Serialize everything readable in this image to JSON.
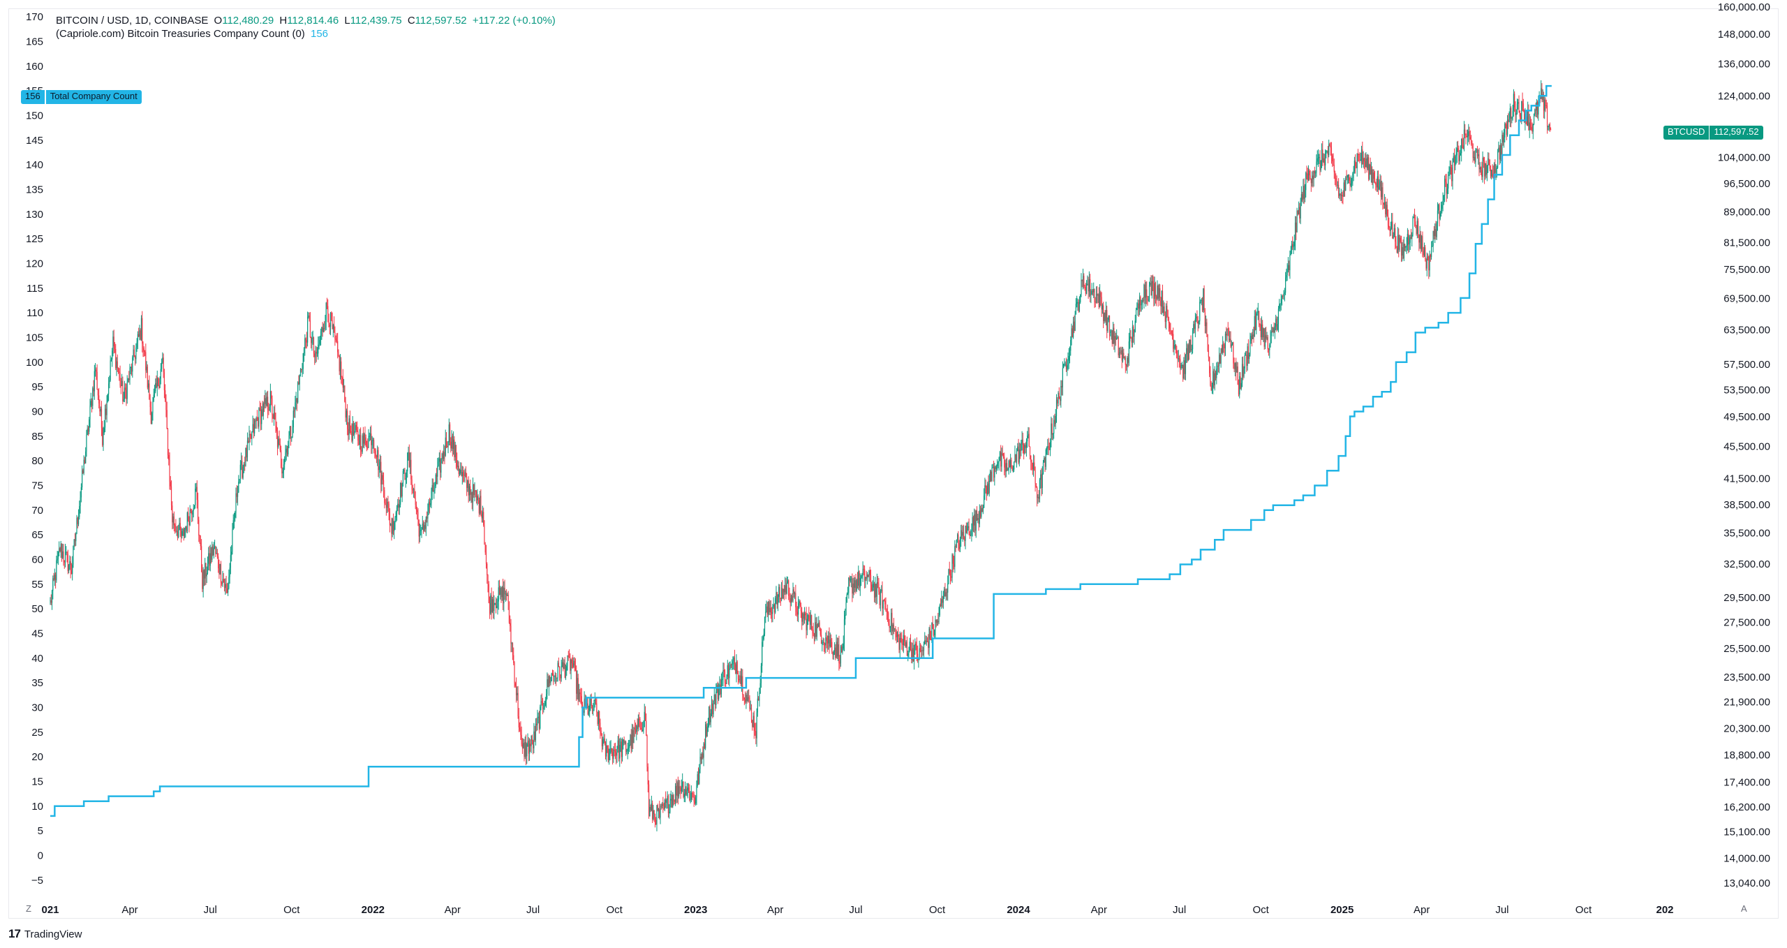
{
  "header": {
    "symbol": "BITCOIN / USD, 1D, COINBASE",
    "open_label": "O",
    "open": "112,480.29",
    "high_label": "H",
    "high": "112,814.46",
    "low_label": "L",
    "low": "112,439.75",
    "close_label": "C",
    "close": "112,597.52",
    "change": "+117.22 (+0.10%)",
    "indicator": "(Capriole.com) Bitcoin Treasuries Company Count (0)",
    "indicator_value": "156"
  },
  "badges": {
    "left_value": "156",
    "left_label": "Total Company Count",
    "right_symbol": "BTCUSD",
    "right_price": "112,597.52"
  },
  "footer": {
    "brand": "TradingView",
    "zoom_button": "Z",
    "auto_button": "A"
  },
  "colors": {
    "up": "#089981",
    "down": "#f23645",
    "count_line": "#22b5e6",
    "axis_text": "#131722"
  },
  "chart_data": {
    "type": "candlestick + step line",
    "symbol": "BTCUSD",
    "interval": "1D",
    "x_range": [
      "2021-01-01",
      "2026-01-01"
    ],
    "x_tick_labels": [
      "021",
      "Apr",
      "Jul",
      "Oct",
      "2022",
      "Apr",
      "Jul",
      "Oct",
      "2023",
      "Apr",
      "Jul",
      "Oct",
      "2024",
      "Apr",
      "Jul",
      "Oct",
      "2025",
      "Apr",
      "Jul",
      "Oct",
      "202"
    ],
    "x_tick_dates": [
      "2021-01-01",
      "2021-04-01",
      "2021-07-01",
      "2021-10-01",
      "2022-01-01",
      "2022-04-01",
      "2022-07-01",
      "2022-10-01",
      "2023-01-01",
      "2023-04-01",
      "2023-07-01",
      "2023-10-01",
      "2024-01-01",
      "2024-04-01",
      "2024-07-01",
      "2024-10-01",
      "2025-01-01",
      "2025-04-01",
      "2025-07-01",
      "2025-10-01",
      "2026-01-01"
    ],
    "left_axis": {
      "label": "Total Company Count",
      "range": [
        -8,
        172
      ],
      "ticks": [
        -5,
        0,
        5,
        10,
        15,
        20,
        25,
        30,
        35,
        40,
        45,
        50,
        55,
        60,
        65,
        70,
        75,
        80,
        85,
        90,
        95,
        100,
        105,
        110,
        115,
        120,
        125,
        130,
        135,
        140,
        145,
        150,
        155,
        160,
        165,
        170
      ]
    },
    "right_axis": {
      "scale": "log",
      "range": [
        12600,
        160000
      ],
      "ticks": [
        13040,
        14000,
        15100,
        16200,
        17400,
        18800,
        20300,
        21900,
        23500,
        25500,
        27500,
        29500,
        32500,
        35500,
        38500,
        41500,
        45500,
        49500,
        53500,
        57500,
        63500,
        69500,
        75500,
        81500,
        89000,
        96500,
        104000,
        112000,
        124000,
        136000,
        148000,
        160000
      ],
      "tick_labels": [
        "13,040.00",
        "14,000.00",
        "15,100.00",
        "16,200.00",
        "17,400.00",
        "18,800.00",
        "20,300.00",
        "21,900.00",
        "23,500.00",
        "25,500.00",
        "27,500.00",
        "29,500.00",
        "32,500.00",
        "35,500.00",
        "38,500.00",
        "41,500.00",
        "45,500.00",
        "49,500.00",
        "53,500.00",
        "57,500.00",
        "63,500.00",
        "69,500.00",
        "75,500.00",
        "81,500.00",
        "89,000.00",
        "96,500.00",
        "104,000.00",
        "",
        "124,000.00",
        "136,000.00",
        "148,000.00",
        "160,000.00"
      ]
    },
    "price_series": {
      "name": "BITCOIN / USD",
      "approx_close_path": [
        [
          "2021-01-01",
          29000
        ],
        [
          "2021-01-12",
          34000
        ],
        [
          "2021-01-25",
          32000
        ],
        [
          "2021-02-10",
          45000
        ],
        [
          "2021-02-21",
          57000
        ],
        [
          "2021-03-01",
          47000
        ],
        [
          "2021-03-13",
          61000
        ],
        [
          "2021-03-25",
          52000
        ],
        [
          "2021-04-14",
          64000
        ],
        [
          "2021-04-25",
          50000
        ],
        [
          "2021-05-08",
          58000
        ],
        [
          "2021-05-19",
          37000
        ],
        [
          "2021-05-30",
          35000
        ],
        [
          "2021-06-15",
          40000
        ],
        [
          "2021-06-22",
          31000
        ],
        [
          "2021-07-05",
          34000
        ],
        [
          "2021-07-20",
          29800
        ],
        [
          "2021-08-01",
          41000
        ],
        [
          "2021-08-22",
          49000
        ],
        [
          "2021-09-07",
          52000
        ],
        [
          "2021-09-20",
          43000
        ],
        [
          "2021-10-01",
          48000
        ],
        [
          "2021-10-20",
          65000
        ],
        [
          "2021-10-28",
          58000
        ],
        [
          "2021-11-10",
          68000
        ],
        [
          "2021-11-25",
          57000
        ],
        [
          "2021-12-04",
          48000
        ],
        [
          "2021-12-20",
          46000
        ],
        [
          "2022-01-01",
          47000
        ],
        [
          "2022-01-22",
          36000
        ],
        [
          "2022-02-10",
          44000
        ],
        [
          "2022-02-24",
          35000
        ],
        [
          "2022-03-28",
          47500
        ],
        [
          "2022-04-10",
          42000
        ],
        [
          "2022-05-05",
          38000
        ],
        [
          "2022-05-12",
          29000
        ],
        [
          "2022-06-01",
          30000
        ],
        [
          "2022-06-13",
          22000
        ],
        [
          "2022-06-18",
          19000
        ],
        [
          "2022-07-01",
          19500
        ],
        [
          "2022-07-20",
          23500
        ],
        [
          "2022-08-14",
          24500
        ],
        [
          "2022-08-25",
          21500
        ],
        [
          "2022-09-10",
          21500
        ],
        [
          "2022-09-20",
          19000
        ],
        [
          "2022-10-15",
          19200
        ],
        [
          "2022-11-05",
          21000
        ],
        [
          "2022-11-09",
          16000
        ],
        [
          "2022-11-21",
          15800
        ],
        [
          "2022-12-15",
          17300
        ],
        [
          "2022-12-31",
          16600
        ],
        [
          "2023-01-15",
          21000
        ],
        [
          "2023-02-01",
          23500
        ],
        [
          "2023-02-16",
          24500
        ],
        [
          "2023-03-10",
          20200
        ],
        [
          "2023-03-20",
          28000
        ],
        [
          "2023-04-14",
          30500
        ],
        [
          "2023-05-01",
          28000
        ],
        [
          "2023-05-25",
          26500
        ],
        [
          "2023-06-15",
          25000
        ],
        [
          "2023-06-23",
          30500
        ],
        [
          "2023-07-13",
          31400
        ],
        [
          "2023-08-01",
          29200
        ],
        [
          "2023-08-17",
          26200
        ],
        [
          "2023-09-11",
          25000
        ],
        [
          "2023-10-01",
          27500
        ],
        [
          "2023-10-24",
          34500
        ],
        [
          "2023-11-15",
          37000
        ],
        [
          "2023-12-08",
          44000
        ],
        [
          "2023-12-20",
          42500
        ],
        [
          "2024-01-11",
          46500
        ],
        [
          "2024-01-23",
          39500
        ],
        [
          "2024-02-15",
          52000
        ],
        [
          "2024-03-05",
          66000
        ],
        [
          "2024-03-14",
          73000
        ],
        [
          "2024-04-01",
          69500
        ],
        [
          "2024-04-15",
          63000
        ],
        [
          "2024-05-01",
          57500
        ],
        [
          "2024-05-20",
          71000
        ],
        [
          "2024-06-07",
          71500
        ],
        [
          "2024-07-05",
          56500
        ],
        [
          "2024-07-28",
          69500
        ],
        [
          "2024-08-05",
          53500
        ],
        [
          "2024-08-25",
          64000
        ],
        [
          "2024-09-06",
          54000
        ],
        [
          "2024-09-27",
          66000
        ],
        [
          "2024-10-10",
          60000
        ],
        [
          "2024-10-29",
          72000
        ],
        [
          "2024-11-12",
          88000
        ],
        [
          "2024-11-22",
          98000
        ],
        [
          "2024-12-17",
          106000
        ],
        [
          "2024-12-30",
          92500
        ],
        [
          "2025-01-20",
          105000
        ],
        [
          "2025-02-10",
          97000
        ],
        [
          "2025-02-27",
          84000
        ],
        [
          "2025-03-10",
          79000
        ],
        [
          "2025-03-24",
          87000
        ],
        [
          "2025-04-08",
          76500
        ],
        [
          "2025-04-25",
          94000
        ],
        [
          "2025-05-22",
          111500
        ],
        [
          "2025-06-05",
          101500
        ],
        [
          "2025-06-22",
          100500
        ],
        [
          "2025-07-14",
          121500
        ],
        [
          "2025-07-28",
          118000
        ],
        [
          "2025-08-03",
          113500
        ],
        [
          "2025-08-14",
          123500
        ],
        [
          "2025-08-25",
          112500
        ]
      ],
      "last_close": 112597.52
    },
    "company_count_series": {
      "name": "Total Company Count",
      "steps": [
        [
          "2021-01-01",
          8
        ],
        [
          "2021-01-06",
          10
        ],
        [
          "2021-02-08",
          11
        ],
        [
          "2021-03-08",
          12
        ],
        [
          "2021-04-28",
          13
        ],
        [
          "2021-05-05",
          14
        ],
        [
          "2021-12-27",
          18
        ],
        [
          "2022-08-22",
          24
        ],
        [
          "2022-08-26",
          30
        ],
        [
          "2022-08-30",
          32
        ],
        [
          "2023-01-01",
          32
        ],
        [
          "2023-01-10",
          34
        ],
        [
          "2023-02-27",
          36
        ],
        [
          "2023-07-01",
          40
        ],
        [
          "2023-09-26",
          44
        ],
        [
          "2023-12-04",
          53
        ],
        [
          "2024-02-01",
          54
        ],
        [
          "2024-03-11",
          55
        ],
        [
          "2024-05-15",
          56
        ],
        [
          "2024-06-20",
          57
        ],
        [
          "2024-07-02",
          59
        ],
        [
          "2024-07-15",
          60
        ],
        [
          "2024-07-25",
          62
        ],
        [
          "2024-08-10",
          64
        ],
        [
          "2024-08-20",
          66
        ],
        [
          "2024-09-20",
          68
        ],
        [
          "2024-10-05",
          70
        ],
        [
          "2024-10-15",
          71
        ],
        [
          "2024-11-08",
          72
        ],
        [
          "2024-11-18",
          73
        ],
        [
          "2024-12-01",
          75
        ],
        [
          "2024-12-15",
          78
        ],
        [
          "2024-12-28",
          81
        ],
        [
          "2025-01-05",
          85
        ],
        [
          "2025-01-10",
          89
        ],
        [
          "2025-01-15",
          90
        ],
        [
          "2025-01-25",
          91
        ],
        [
          "2025-02-05",
          93
        ],
        [
          "2025-02-15",
          94
        ],
        [
          "2025-02-25",
          96
        ],
        [
          "2025-03-03",
          100
        ],
        [
          "2025-03-15",
          102
        ],
        [
          "2025-03-25",
          106
        ],
        [
          "2025-04-05",
          107
        ],
        [
          "2025-04-20",
          108
        ],
        [
          "2025-05-01",
          110
        ],
        [
          "2025-05-15",
          113
        ],
        [
          "2025-05-25",
          118
        ],
        [
          "2025-06-01",
          124
        ],
        [
          "2025-06-08",
          128
        ],
        [
          "2025-06-15",
          133
        ],
        [
          "2025-06-22",
          138
        ],
        [
          "2025-07-01",
          142
        ],
        [
          "2025-07-10",
          146
        ],
        [
          "2025-07-20",
          149
        ],
        [
          "2025-07-28",
          151
        ],
        [
          "2025-08-03",
          152
        ],
        [
          "2025-08-12",
          154
        ],
        [
          "2025-08-20",
          156
        ],
        [
          "2025-08-26",
          156
        ]
      ],
      "last_value": 156
    }
  }
}
